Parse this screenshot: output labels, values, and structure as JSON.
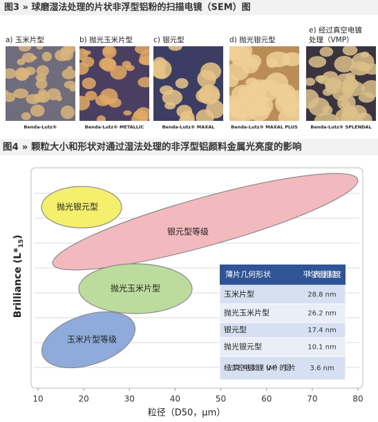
{
  "figure3": {
    "title": "图3 » 球磨湿法处理的片状非浮型铝粉的扫描电镜（SEM）图",
    "panels": [
      {
        "label": "a) 玉米片型",
        "caption": "Benda-Lutz®"
      },
      {
        "label": "b) 抛光玉米片型",
        "caption": "Benda-Lutz® METALLIC"
      },
      {
        "label": "c) 银元型",
        "caption": "Benda-Lutz® MAXAL"
      },
      {
        "label": "d) 抛光银元型",
        "caption": "Benda-Lutz® MAXAL PLUS"
      },
      {
        "label_lines": [
          "e) 经过真空电镀",
          "处理（VMP）"
        ],
        "caption": "Benda-Lutz® SPLENDAL"
      }
    ]
  },
  "chart_data": {
    "type": "region",
    "title": "图4 » 颗粒大小和形状对通过湿法处理的非浮型铝颜料金属光亮度的影响",
    "xlabel": "粒径（D50，μm）",
    "ylabel": "Brilliance (L*",
    "ylabel_subscript": "15",
    "ylabel_end": ")",
    "xlim": [
      10,
      80
    ],
    "xticks": [
      10,
      20,
      30,
      40,
      50,
      60,
      70,
      80
    ],
    "regions": [
      {
        "label": "抛光银元型",
        "color": "#f4ef6c"
      },
      {
        "label": "银元型等级",
        "color": "#f2b9be"
      },
      {
        "label": "抛光玉米片型",
        "color": "#bcdc9d"
      },
      {
        "label": "玉米片型等级",
        "color": "#8fabdb"
      }
    ],
    "table": {
      "header": [
        "薄片几何形状",
        "平均表面粗糙度"
      ],
      "rows": [
        [
          "玉米片型",
          "28.8 nm"
        ],
        [
          "抛光玉米片型",
          "26.2 nm"
        ],
        [
          "银元型",
          "17.4 nm"
        ],
        [
          "抛光银元型",
          "10.1 nm"
        ],
        [
          "经过真空电镀处理（VMP）的铝片",
          "3.6 nm"
        ]
      ]
    }
  }
}
